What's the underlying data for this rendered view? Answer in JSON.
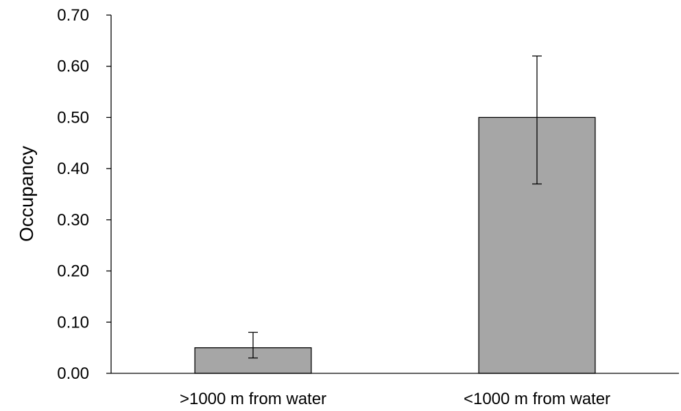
{
  "chart_data": {
    "type": "bar",
    "title": "",
    "xlabel": "",
    "ylabel": "Occupancy",
    "categories": [
      ">1000 m from water",
      "<1000 m from water"
    ],
    "values": [
      0.05,
      0.5
    ],
    "error_low": [
      0.03,
      0.37
    ],
    "error_high": [
      0.08,
      0.62
    ],
    "ylim": [
      0,
      0.7
    ],
    "yticks": [
      "0.00",
      "0.10",
      "0.20",
      "0.30",
      "0.40",
      "0.50",
      "0.60",
      "0.70"
    ],
    "grid": false,
    "legend": "none",
    "colors": {
      "bar_fill": "#a6a6a6",
      "bar_stroke": "#000000",
      "axis": "#000000",
      "error_bar": "#000000"
    }
  }
}
